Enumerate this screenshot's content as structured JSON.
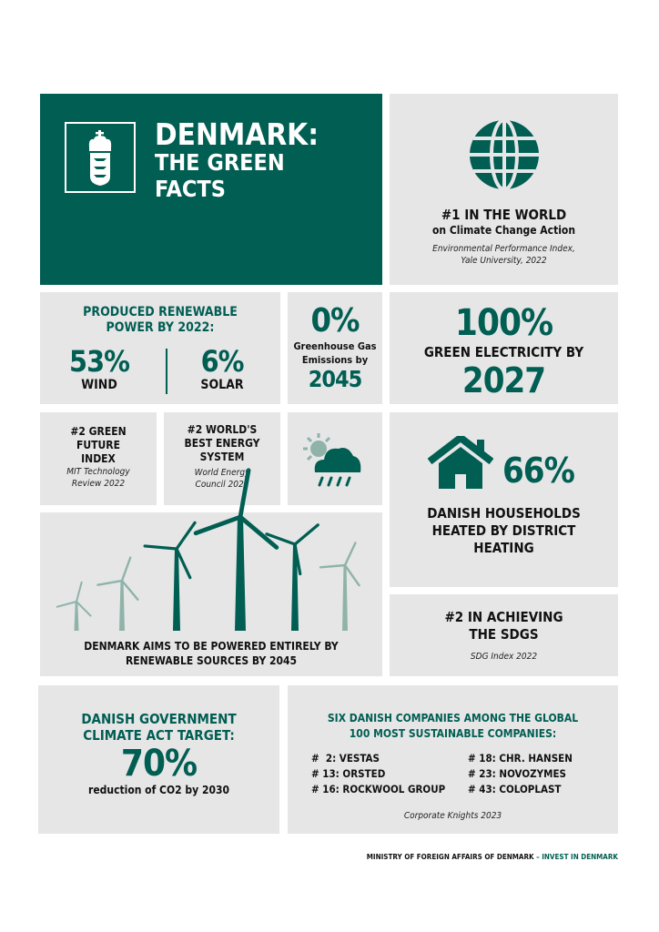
{
  "colors": {
    "brand_green": "#005e52",
    "light_green": "#8fb3a8",
    "panel_gray": "#e6e6e7"
  },
  "hero": {
    "title_line1": "DENMARK:",
    "title_line2": "THE GREEN",
    "title_line3": "FACTS",
    "emblem": "danish-royal-coat-of-arms-icon"
  },
  "world_rank": {
    "icon": "globe-icon",
    "headline": "#1 IN THE WORLD",
    "subline": "on Climate Change Action",
    "source_line1": "Environmental Performance Index,",
    "source_line2": "Yale University, 2022"
  },
  "renewable": {
    "title_line1": "PRODUCED RENEWABLE",
    "title_line2": "POWER BY 2022:",
    "wind_value": "53%",
    "wind_label": "WIND",
    "solar_value": "6%",
    "solar_label": "SOLAR"
  },
  "emissions": {
    "value": "0%",
    "label_line1": "Greenhouse Gas",
    "label_line2": "Emissions by",
    "year": "2045"
  },
  "electricity": {
    "value": "100%",
    "label": "GREEN ELECTRICITY BY",
    "year": "2027"
  },
  "green_future": {
    "line1": "#2 GREEN",
    "line2": "FUTURE",
    "line3": "INDEX",
    "source_line1": "MIT Technology",
    "source_line2": "Review 2022"
  },
  "energy_system": {
    "line1": "#2 WORLD'S",
    "line2": "BEST ENERGY",
    "line3": "SYSTEM",
    "source_line1": "World Energy",
    "source_line2": "Council 2022"
  },
  "weather": {
    "icon": "sun-cloud-rain-icon"
  },
  "heating": {
    "icon": "house-icon",
    "value": "66%",
    "line1": "DANISH HOUSEHOLDS",
    "line2": "HEATED BY DISTRICT",
    "line3": "HEATING"
  },
  "wind_goal": {
    "icon": "wind-turbines-icon",
    "line1": "DENMARK AIMS TO BE POWERED ENTIRELY BY",
    "line2": "RENEWABLE SOURCES BY 2045"
  },
  "sdg": {
    "line1": "#2 IN ACHIEVING",
    "line2": "THE SDGS",
    "source": "SDG Index 2022"
  },
  "climate_act": {
    "title_line1": "DANISH GOVERNMENT",
    "title_line2": "CLIMATE ACT TARGET:",
    "value": "70%",
    "label": "reduction of CO2 by 2030"
  },
  "companies": {
    "title_line1": "SIX DANISH COMPANIES AMONG THE GLOBAL",
    "title_line2": "100 MOST SUSTAINABLE COMPANIES:",
    "items": [
      "#  2: VESTAS",
      "# 18: CHR. HANSEN",
      "# 13: ORSTED",
      "# 23: NOVOZYMES",
      "# 16: ROCKWOOL GROUP",
      "# 43: COLOPLAST"
    ],
    "source": "Corporate Knights 2023"
  },
  "footer": {
    "ministry": "MINISTRY OF FOREIGN AFFAIRS OF DENMARK",
    "separator": " – ",
    "brand": "INVEST IN DENMARK"
  }
}
